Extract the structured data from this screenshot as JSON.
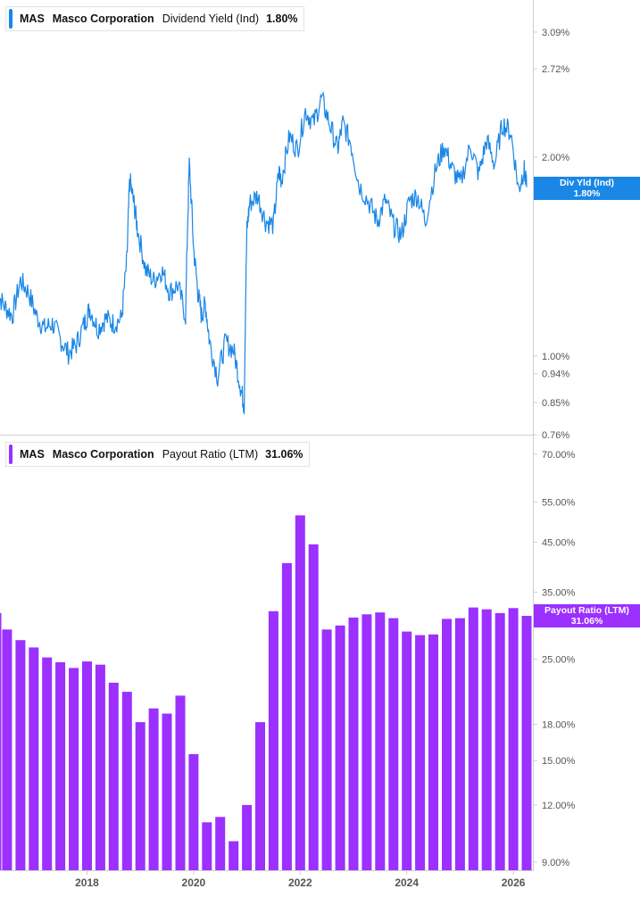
{
  "colors": {
    "yield": "#1a86e6",
    "payout": "#9b30ff",
    "axis_text": "#555555"
  },
  "top_panel": {
    "legend": {
      "ticker": "MAS",
      "company": "Masco Corporation",
      "metric": "Dividend Yield (Ind)",
      "value": "1.80%"
    },
    "tag": {
      "label": "Div Yld (Ind)",
      "value": "1.80%"
    }
  },
  "bottom_panel": {
    "legend": {
      "ticker": "MAS",
      "company": "Masco Corporation",
      "metric": "Payout Ratio (LTM)",
      "value": "31.06%"
    },
    "tag": {
      "label": "Payout Ratio (LTM)",
      "value": "31.06%"
    }
  },
  "chart_data": [
    {
      "type": "line",
      "series": [
        {
          "name": "Dividend Yield (Ind)",
          "x": [
            2016.3,
            2016.45,
            2016.6,
            2016.75,
            2016.9,
            2017.05,
            2017.2,
            2017.35,
            2017.5,
            2017.65,
            2017.8,
            2017.95,
            2018.05,
            2018.2,
            2018.35,
            2018.5,
            2018.65,
            2018.75,
            2018.8,
            2018.88,
            2018.95,
            2019.1,
            2019.25,
            2019.4,
            2019.55,
            2019.7,
            2019.85,
            2019.92,
            2020.0,
            2020.08,
            2020.15,
            2020.22,
            2020.3,
            2020.45,
            2020.6,
            2020.75,
            2020.88,
            2020.95,
            2021.0,
            2021.05,
            2021.2,
            2021.35,
            2021.5,
            2021.6,
            2021.65,
            2021.8,
            2021.95,
            2022.1,
            2022.25,
            2022.4,
            2022.55,
            2022.7,
            2022.8,
            2022.95,
            2023.1,
            2023.3,
            2023.45,
            2023.6,
            2023.75,
            2023.9,
            2024.05,
            2024.2,
            2024.35,
            2024.55,
            2024.7,
            2024.85,
            2025.0,
            2025.2,
            2025.35,
            2025.5,
            2025.65,
            2025.8,
            2025.95,
            2026.1,
            2026.2,
            2026.25
          ],
          "y": [
            1.25,
            1.19,
            1.15,
            1.3,
            1.25,
            1.15,
            1.1,
            1.12,
            1.06,
            1.01,
            1.04,
            1.12,
            1.18,
            1.1,
            1.14,
            1.12,
            1.14,
            1.4,
            1.85,
            1.7,
            1.55,
            1.35,
            1.3,
            1.35,
            1.25,
            1.28,
            1.15,
            1.95,
            1.45,
            1.25,
            1.15,
            1.2,
            1.05,
            0.93,
            1.05,
            1.02,
            0.9,
            0.84,
            1.55,
            1.7,
            1.75,
            1.6,
            1.58,
            1.9,
            1.85,
            2.15,
            2.05,
            2.35,
            2.25,
            2.45,
            2.25,
            2.05,
            2.25,
            2.1,
            1.82,
            1.7,
            1.6,
            1.72,
            1.58,
            1.52,
            1.72,
            1.75,
            1.6,
            1.92,
            2.08,
            1.92,
            1.82,
            2.08,
            1.88,
            2.12,
            1.95,
            2.25,
            2.18,
            1.78,
            1.92,
            1.8
          ]
        }
      ],
      "y_ticks": [
        "3.09%",
        "2.72%",
        "2.00%",
        "1.00%",
        "0.94%",
        "0.85%",
        "0.76%"
      ],
      "y_tick_values": [
        3.09,
        2.72,
        2.0,
        1.0,
        0.94,
        0.85,
        0.76
      ],
      "y_scale": "log",
      "xlim": [
        2016.3,
        2026.3
      ]
    },
    {
      "type": "bar",
      "series": [
        {
          "name": "Payout Ratio (LTM)",
          "x": [
            2016.3,
            2016.5,
            2016.75,
            2017.0,
            2017.25,
            2017.5,
            2017.75,
            2018.0,
            2018.25,
            2018.5,
            2018.75,
            2019.0,
            2019.25,
            2019.5,
            2019.75,
            2020.0,
            2020.25,
            2020.5,
            2020.75,
            2021.0,
            2021.25,
            2021.5,
            2021.75,
            2022.0,
            2022.25,
            2022.5,
            2022.75,
            2023.0,
            2023.25,
            2023.5,
            2023.75,
            2024.0,
            2024.25,
            2024.5,
            2024.75,
            2025.0,
            2025.25,
            2025.5,
            2025.75,
            2026.0,
            2026.25
          ],
          "values": [
            31.5,
            29.0,
            27.5,
            26.5,
            25.2,
            24.6,
            23.9,
            24.7,
            24.3,
            22.2,
            21.2,
            18.2,
            19.5,
            19.0,
            20.8,
            15.5,
            11.0,
            11.3,
            10.0,
            12.0,
            18.2,
            31.8,
            40.5,
            51.5,
            44.5,
            29.0,
            29.6,
            30.8,
            31.3,
            31.6,
            30.7,
            28.7,
            28.2,
            28.3,
            30.6,
            30.7,
            32.4,
            32.1,
            31.5,
            32.3,
            31.06
          ]
        }
      ],
      "y_ticks": [
        "70.00%",
        "55.00%",
        "45.00%",
        "35.00%",
        "25.00%",
        "18.00%",
        "15.00%",
        "12.00%",
        "9.00%"
      ],
      "y_tick_values": [
        70,
        55,
        45,
        35,
        25,
        18,
        15,
        12,
        9
      ],
      "y_scale": "log",
      "x_ticks": [
        "2018",
        "2020",
        "2022",
        "2024",
        "2026"
      ],
      "x_tick_values": [
        2018,
        2020,
        2022,
        2024,
        2026
      ],
      "xlim": [
        2016.3,
        2026.3
      ]
    }
  ]
}
